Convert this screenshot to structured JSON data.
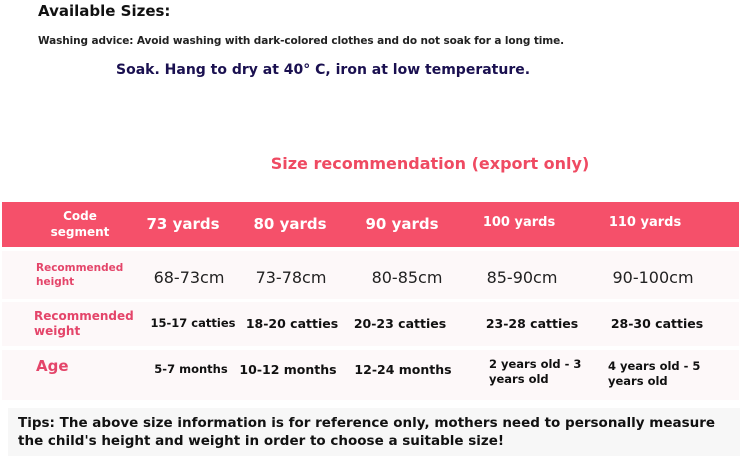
{
  "available_sizes": "Available Sizes:",
  "washing_advice": "Washing advice: Avoid washing with dark-colored clothes and do not soak for a long time.",
  "care": "Soak. Hang to dry at 40°  C, iron at low temperature.",
  "title": "Size recommendation (export only)",
  "table": {
    "header": [
      "Code segment",
      "73 yards",
      "80 yards",
      "90 yards",
      "100 yards",
      "110 yards"
    ],
    "height": {
      "label": "Recommended height",
      "values": [
        "68-73cm",
        "73-78cm",
        "80-85cm",
        "85-90cm",
        "90-100cm"
      ]
    },
    "weight": {
      "label": "Recommended weight",
      "values": [
        "15-17 catties",
        "18-20 catties",
        "20-23 catties",
        "23-28 catties",
        "28-30 catties"
      ]
    },
    "age": {
      "label": "Age",
      "values": [
        "5-7 months",
        "10-12 months",
        "12-24 months",
        "2 years old - 3 years old",
        "4 years old - 5 years old"
      ]
    }
  },
  "tips": "Tips: The above size information is for reference only, mothers need to personally measure the child's height and weight in order to choose a suitable size!",
  "colors": {
    "accent": "#f5506a",
    "label": "#e4456a"
  }
}
